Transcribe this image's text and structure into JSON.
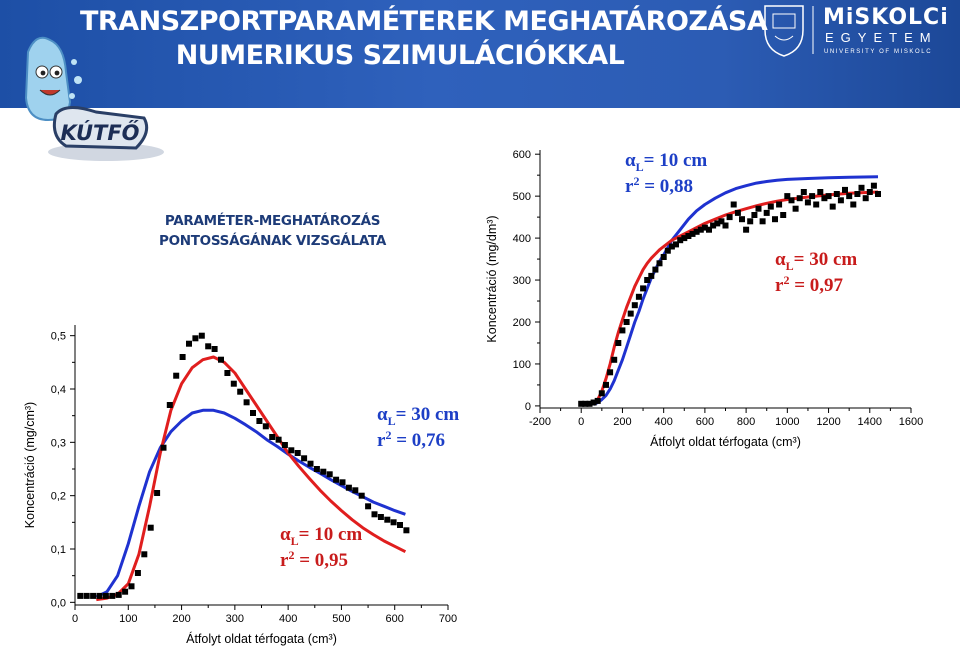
{
  "header": {
    "title_line1": "TRANSZPORTPARAMÉTEREK MEGHATÁROZÁSA",
    "title_line2": "NUMERIKUS SZIMULÁCIÓKKAL",
    "mascot_label": "KÚTFŐ",
    "logo_word": "MiSKOLCi",
    "logo_word2": "EGYETEM",
    "logo_tagline": "UNIVERSITY OF MISKOLC"
  },
  "section": {
    "title_line1": "PARAMÉTER-MEGHATÁROZÁS",
    "title_line2": "PONTOSSÁGÁNAK VIZSGÁLATA"
  },
  "colors": {
    "header": "#2a5ab4",
    "blue_fit": "#1f32d0",
    "red_fit": "#e01e1e",
    "measured": "#000000",
    "annot": "#1d3fc6",
    "annot_red": "#c81c1c"
  },
  "chart_data": [
    {
      "type": "scatter",
      "title": "",
      "xlabel": "Átfolyt oldat térfogata (cm³)",
      "ylabel": "Koncentráció (mg/cm³)",
      "xlim": [
        0,
        700
      ],
      "ylim": [
        -0.005,
        0.52
      ],
      "xticks": [
        0,
        100,
        200,
        300,
        400,
        500,
        600,
        700
      ],
      "xtick_labels": [
        "0",
        "100",
        "200",
        "300",
        "400",
        "500",
        "600",
        "700"
      ],
      "yticks": [
        0.0,
        0.1,
        0.2,
        0.3,
        0.4,
        0.5
      ],
      "ytick_labels": [
        "0,0",
        "0,1",
        "0,2",
        "0,3",
        "0,4",
        "0,5"
      ],
      "grid": false,
      "measured": {
        "x": [
          10,
          22,
          34,
          46,
          58,
          70,
          82,
          94,
          106,
          118,
          130,
          142,
          154,
          166,
          178,
          190,
          202,
          214,
          226,
          238,
          250,
          262,
          274,
          286,
          298,
          310,
          322,
          334,
          346,
          358,
          370,
          382,
          394,
          406,
          418,
          430,
          442,
          454,
          466,
          478,
          490,
          502,
          514,
          526,
          538,
          550,
          562,
          574,
          586,
          598,
          610,
          622
        ],
        "y": [
          0.012,
          0.012,
          0.012,
          0.012,
          0.012,
          0.012,
          0.014,
          0.02,
          0.03,
          0.055,
          0.09,
          0.14,
          0.205,
          0.29,
          0.37,
          0.425,
          0.46,
          0.485,
          0.495,
          0.5,
          0.48,
          0.475,
          0.455,
          0.43,
          0.41,
          0.395,
          0.375,
          0.355,
          0.34,
          0.33,
          0.31,
          0.305,
          0.295,
          0.285,
          0.28,
          0.27,
          0.26,
          0.25,
          0.245,
          0.24,
          0.23,
          0.225,
          0.215,
          0.21,
          0.2,
          0.18,
          0.165,
          0.16,
          0.155,
          0.15,
          0.145,
          0.135
        ]
      },
      "series": [
        {
          "x": [
            40,
            60,
            80,
            100,
            120,
            140,
            160,
            180,
            200,
            220,
            240,
            260,
            280,
            300,
            320,
            340,
            360,
            380,
            400,
            420,
            440,
            460,
            480,
            500,
            520,
            540,
            560,
            580,
            600,
            620
          ],
          "y": [
            0.01,
            0.02,
            0.05,
            0.11,
            0.18,
            0.245,
            0.29,
            0.32,
            0.34,
            0.355,
            0.36,
            0.36,
            0.355,
            0.345,
            0.333,
            0.32,
            0.305,
            0.292,
            0.278,
            0.265,
            0.253,
            0.242,
            0.23,
            0.219,
            0.208,
            0.198,
            0.188,
            0.18,
            0.172,
            0.165
          ],
          "color": "#1f32d0"
        },
        {
          "x": [
            40,
            60,
            80,
            100,
            120,
            140,
            160,
            180,
            200,
            220,
            240,
            260,
            280,
            300,
            320,
            340,
            360,
            380,
            400,
            420,
            440,
            460,
            480,
            500,
            520,
            540,
            560,
            580,
            600,
            620
          ],
          "y": [
            0.005,
            0.008,
            0.015,
            0.035,
            0.09,
            0.18,
            0.28,
            0.36,
            0.41,
            0.44,
            0.455,
            0.46,
            0.45,
            0.43,
            0.4,
            0.37,
            0.34,
            0.31,
            0.28,
            0.255,
            0.232,
            0.21,
            0.19,
            0.172,
            0.155,
            0.14,
            0.127,
            0.115,
            0.105,
            0.095
          ],
          "color": "#e01e1e"
        }
      ],
      "annotations": [
        {
          "alpha": "α",
          "sub": "L",
          "text": "= 30 cm",
          "r": "r",
          "sup": "2",
          "r_text": " = 0,76",
          "color": "#1d3fc6"
        },
        {
          "alpha": "α",
          "sub": "L",
          "text": "= 10 cm",
          "r": "r",
          "sup": "2",
          "r_text": " = 0,95",
          "color": "#c81c1c"
        }
      ]
    },
    {
      "type": "scatter",
      "title": "",
      "xlabel": "Átfolyt oldat térfogata (cm³)",
      "ylabel": "Koncentráció (mg/dm³)",
      "xlim": [
        -200,
        1600
      ],
      "ylim": [
        -5,
        610
      ],
      "xticks": [
        -200,
        0,
        200,
        400,
        600,
        800,
        1000,
        1200,
        1400,
        1600
      ],
      "xtick_labels": [
        "-200",
        "0",
        "200",
        "400",
        "600",
        "800",
        "1000",
        "1200",
        "1400",
        "1600"
      ],
      "yticks": [
        0,
        100,
        200,
        300,
        400,
        500,
        600
      ],
      "ytick_labels": [
        "0",
        "100",
        "200",
        "300",
        "400",
        "500",
        "600"
      ],
      "grid": false,
      "measured": {
        "x": [
          0,
          20,
          40,
          60,
          80,
          100,
          120,
          140,
          160,
          180,
          200,
          220,
          240,
          260,
          280,
          300,
          320,
          340,
          360,
          380,
          400,
          420,
          440,
          460,
          480,
          500,
          520,
          540,
          560,
          580,
          600,
          620,
          640,
          660,
          680,
          700,
          720,
          740,
          760,
          780,
          800,
          820,
          840,
          860,
          880,
          900,
          920,
          940,
          960,
          980,
          1000,
          1020,
          1040,
          1060,
          1080,
          1100,
          1120,
          1140,
          1160,
          1180,
          1200,
          1220,
          1240,
          1260,
          1280,
          1300,
          1320,
          1340,
          1360,
          1380,
          1400,
          1420,
          1440
        ],
        "y": [
          5,
          5,
          5,
          8,
          12,
          30,
          50,
          80,
          110,
          150,
          180,
          200,
          220,
          240,
          260,
          280,
          300,
          310,
          325,
          340,
          355,
          370,
          380,
          385,
          395,
          400,
          405,
          410,
          415,
          420,
          425,
          420,
          430,
          435,
          440,
          430,
          450,
          480,
          460,
          445,
          420,
          440,
          455,
          470,
          440,
          460,
          475,
          445,
          480,
          455,
          500,
          490,
          470,
          495,
          510,
          485,
          500,
          480,
          510,
          495,
          500,
          475,
          505,
          490,
          515,
          500,
          480,
          505,
          520,
          495,
          510,
          525,
          505
        ]
      },
      "series": [
        {
          "x": [
            60,
            80,
            100,
            120,
            140,
            160,
            180,
            200,
            220,
            240,
            260,
            280,
            300,
            320,
            340,
            360,
            380,
            400,
            440,
            480,
            520,
            560,
            600,
            650,
            700,
            750,
            800,
            850,
            900,
            950,
            1000,
            1100,
            1200,
            1300,
            1440
          ],
          "y": [
            3,
            8,
            15,
            25,
            40,
            60,
            85,
            110,
            140,
            170,
            200,
            225,
            255,
            280,
            305,
            325,
            345,
            360,
            395,
            420,
            445,
            465,
            480,
            495,
            508,
            518,
            525,
            531,
            535,
            538,
            540,
            542,
            544,
            545,
            546
          ],
          "color": "#1f32d0"
        },
        {
          "x": [
            40,
            60,
            80,
            100,
            120,
            140,
            160,
            180,
            200,
            220,
            240,
            260,
            280,
            300,
            320,
            340,
            360,
            380,
            400,
            440,
            480,
            520,
            560,
            600,
            650,
            700,
            750,
            800,
            850,
            900,
            950,
            1000,
            1100,
            1200,
            1300,
            1440
          ],
          "y": [
            2,
            6,
            15,
            35,
            65,
            100,
            140,
            175,
            205,
            235,
            260,
            285,
            305,
            325,
            340,
            352,
            362,
            372,
            380,
            395,
            405,
            415,
            425,
            435,
            445,
            455,
            463,
            470,
            477,
            483,
            488,
            492,
            498,
            503,
            507,
            510
          ],
          "color": "#e01e1e"
        }
      ],
      "annotations": [
        {
          "alpha": "α",
          "sub": "L",
          "text": "= 10 cm",
          "r": "r",
          "sup": "2",
          "r_text": " = 0,88",
          "color": "#1d3fc6"
        },
        {
          "alpha": "α",
          "sub": "L",
          "text": "= 30 cm",
          "r": "r",
          "sup": "2",
          "r_text": " = 0,97",
          "color": "#c81c1c"
        }
      ]
    }
  ]
}
